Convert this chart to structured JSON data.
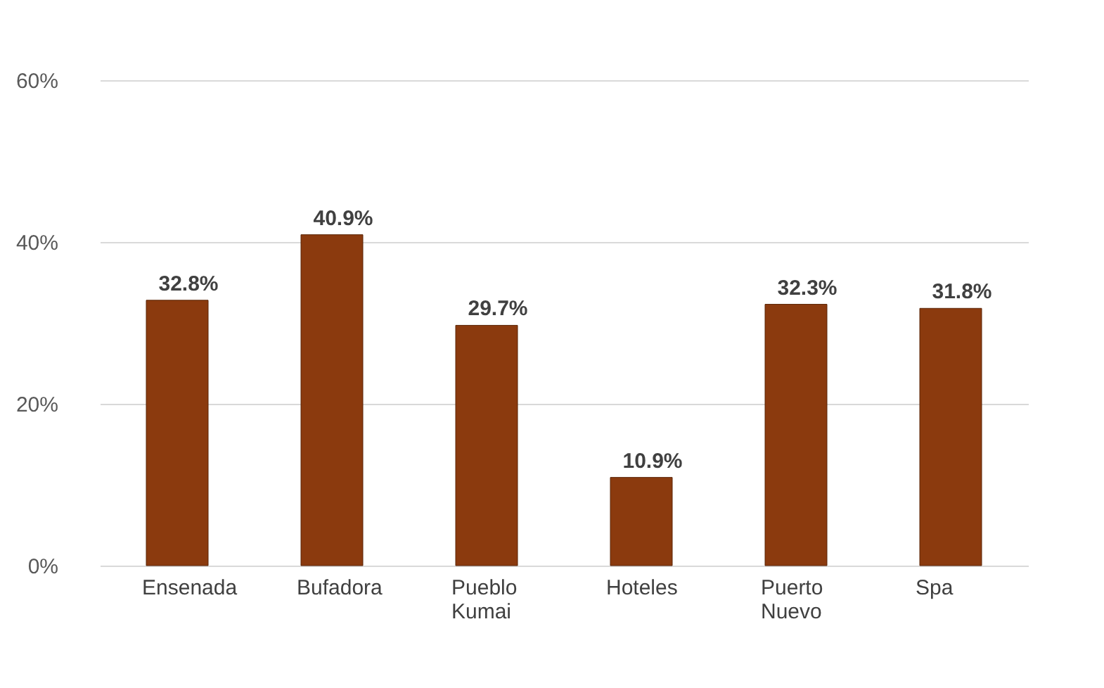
{
  "chart_data": {
    "type": "bar",
    "categories": [
      "Ensenada",
      "Bufadora",
      "Pueblo Kumai",
      "Hoteles",
      "Puerto Nuevo",
      "Spa"
    ],
    "values": [
      32.8,
      40.9,
      29.7,
      10.9,
      32.3,
      31.8
    ],
    "value_labels": [
      "32.8%",
      "40.9%",
      "29.7%",
      "10.9%",
      "32.3%",
      "31.8%"
    ],
    "color": "#8b3a0e",
    "ylim": [
      0,
      60
    ],
    "yticks": [
      {
        "value": 0,
        "label": "0%"
      },
      {
        "value": 20,
        "label": "20%"
      },
      {
        "value": 40,
        "label": "40%"
      },
      {
        "value": 60,
        "label": "60%"
      }
    ],
    "grid": "y"
  }
}
